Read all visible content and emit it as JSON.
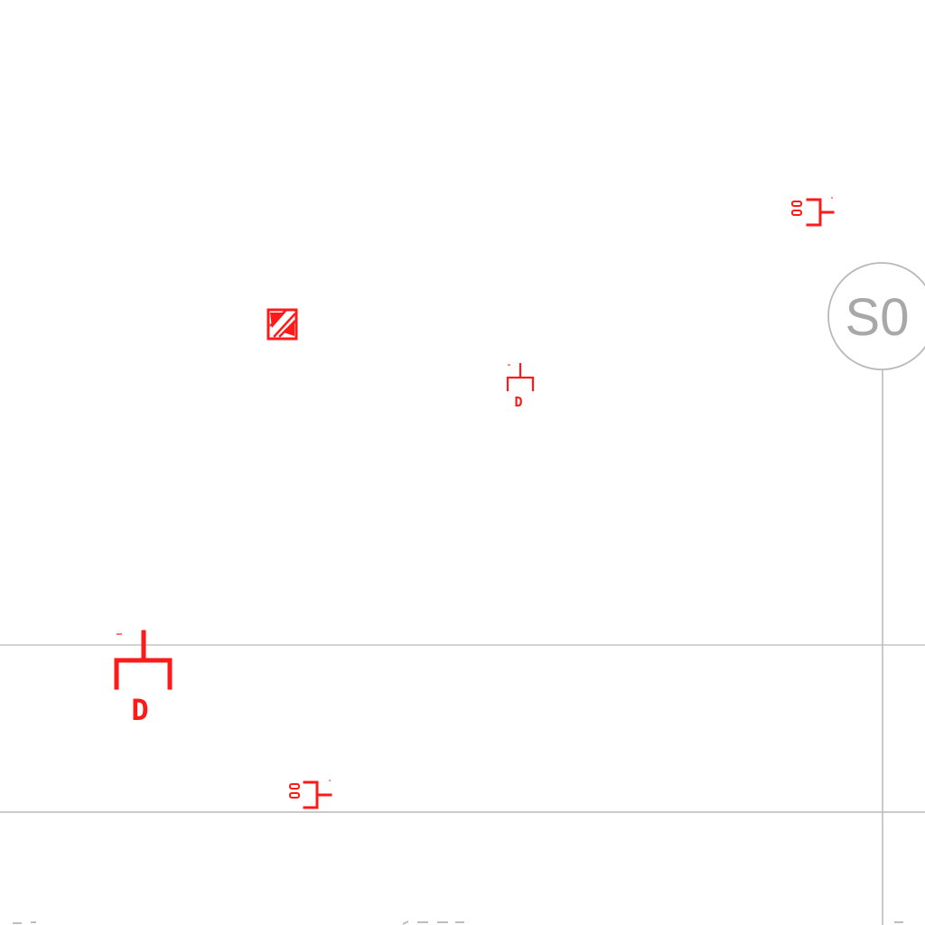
{
  "colors": {
    "background": "#ffffff",
    "grid_line": "#b9b9b9",
    "symbol": "#ff1a1a"
  },
  "grid_bubble": {
    "label": "S0"
  },
  "symbols": [
    {
      "kind": "wall-outlet",
      "label": "D"
    },
    {
      "kind": "wall-outlet",
      "label": "D"
    },
    {
      "kind": "switch-receptacle"
    },
    {
      "kind": "switch-receptacle"
    },
    {
      "kind": "hatched-box"
    }
  ]
}
